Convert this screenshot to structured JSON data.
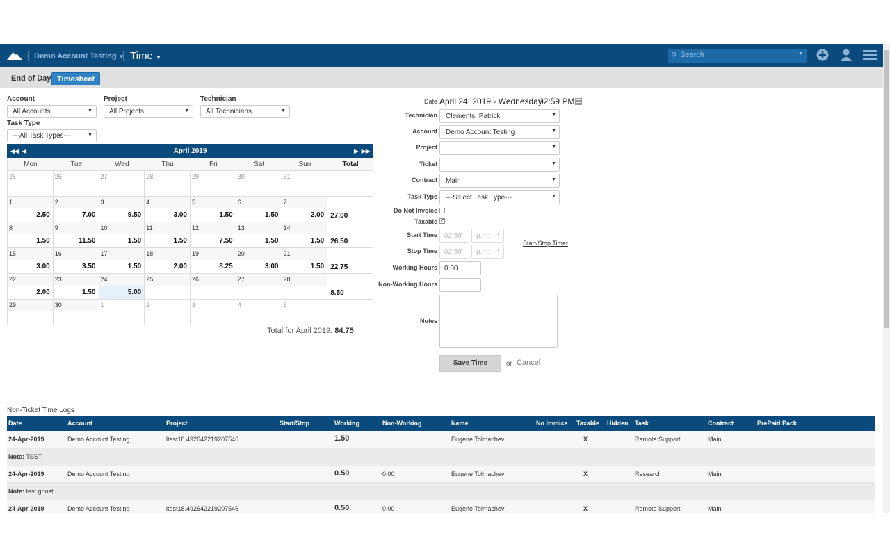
{
  "header": {
    "account": "Demo Account Testing",
    "module": "Time",
    "search_placeholder": "Search"
  },
  "tabs": [
    {
      "label": "End of Day"
    },
    {
      "label": "Timesheet"
    }
  ],
  "filters": {
    "account_label": "Account",
    "account_value": "All Accounts",
    "project_label": "Project",
    "project_value": "All Projects",
    "technician_label": "Technician",
    "technician_value": "All Technicians",
    "tasktype_label": "Task Type",
    "tasktype_value": "---All Task Types---"
  },
  "calendar": {
    "title": "April 2019",
    "weekdays": [
      "Mon",
      "Tue",
      "Wed",
      "Thu",
      "Fri",
      "Sat",
      "Sun",
      "Total"
    ],
    "weeks": [
      {
        "days": [
          [
            "25",
            ""
          ],
          [
            "26",
            ""
          ],
          [
            "27",
            ""
          ],
          [
            "28",
            ""
          ],
          [
            "29",
            ""
          ],
          [
            "30",
            ""
          ],
          [
            "31",
            ""
          ]
        ],
        "total": "",
        "out": [
          0,
          1,
          2,
          3,
          4,
          5,
          6
        ]
      },
      {
        "days": [
          [
            "1",
            "2.50"
          ],
          [
            "2",
            "7.00"
          ],
          [
            "3",
            "9.50"
          ],
          [
            "4",
            "3.00"
          ],
          [
            "5",
            "1.50"
          ],
          [
            "6",
            "1.50"
          ],
          [
            "7",
            "2.00"
          ]
        ],
        "total": "27.00",
        "out": []
      },
      {
        "days": [
          [
            "8",
            "1.50"
          ],
          [
            "9",
            "11.50"
          ],
          [
            "10",
            "1.50"
          ],
          [
            "11",
            "1.50"
          ],
          [
            "12",
            "7.50"
          ],
          [
            "13",
            "1.50"
          ],
          [
            "14",
            "1.50"
          ]
        ],
        "total": "26.50",
        "out": []
      },
      {
        "days": [
          [
            "15",
            "3.00"
          ],
          [
            "16",
            "3.50"
          ],
          [
            "17",
            "1.50"
          ],
          [
            "18",
            "2.00"
          ],
          [
            "19",
            "8.25"
          ],
          [
            "20",
            "3.00"
          ],
          [
            "21",
            "1.50"
          ]
        ],
        "total": "22.75",
        "out": []
      },
      {
        "days": [
          [
            "22",
            "2.00"
          ],
          [
            "23",
            "1.50"
          ],
          [
            "24",
            "5.00"
          ],
          [
            "25",
            ""
          ],
          [
            "26",
            ""
          ],
          [
            "27",
            ""
          ],
          [
            "28",
            ""
          ]
        ],
        "total": "8.50",
        "out": []
      },
      {
        "days": [
          [
            "29",
            ""
          ],
          [
            "30",
            ""
          ],
          [
            "1",
            ""
          ],
          [
            "2",
            ""
          ],
          [
            "3",
            ""
          ],
          [
            "4",
            ""
          ],
          [
            "5",
            ""
          ]
        ],
        "total": "",
        "out": [
          2,
          3,
          4,
          5,
          6
        ]
      }
    ],
    "today": "24",
    "total_label": "Total for April 2019:",
    "total_value": "84.75"
  },
  "form": {
    "date_label": "Date",
    "date_value": "April 24, 2019 - Wednesday",
    "time_value": "02:59 PM",
    "technician_label": "Technician",
    "technician_value": "Clements, Patrick",
    "account_label": "Account",
    "account_value": "Demo Account Testing",
    "project_label": "Project",
    "project_value": "",
    "ticket_label": "Ticket",
    "ticket_value": "",
    "contract_label": "Contract",
    "contract_value": "Main",
    "tasktype_label": "Task Type",
    "tasktype_value": "---Select Task Type---",
    "donotinvoice_label": "Do Not Invoice",
    "donotinvoice_checked": false,
    "taxable_label": "Taxable",
    "taxable_checked": true,
    "start_label": "Start Time",
    "start_value": "02:59",
    "start_ampm": "p.m.",
    "stop_label": "Stop Time",
    "stop_value": "02:59",
    "stop_ampm": "p.m.",
    "timer_link": "Start/Stop Timer",
    "working_label": "Working Hours",
    "working_value": "0.00",
    "nonworking_label": "Non-Working Hours",
    "nonworking_value": "",
    "notes_label": "Notes",
    "notes_value": "",
    "save_label": "Save Time",
    "or_label": "or",
    "cancel_label": "Cancel"
  },
  "logs": {
    "title": "Non-Ticket Time Logs",
    "columns": [
      "Date",
      "Account",
      "Project",
      "Start/Stop",
      "Working",
      "Non-Working",
      "Name",
      "No Invoice",
      "Taxable",
      "Hidden",
      "Task",
      "Contract",
      "PrePaid Pack"
    ],
    "rows": [
      {
        "date": "24-Apr-2019",
        "account": "Demo Account Testing",
        "project": "ltest18.492642219207546",
        "startstop": "",
        "working": "1.50",
        "nonworking": "",
        "name": "Eugene Tolmachev",
        "noinvoice": "",
        "taxable": "X",
        "hidden": "",
        "task": "Remote Support",
        "contract": "Main",
        "prepaid": "",
        "note_label": "Note:",
        "note": "TEST"
      },
      {
        "date": "24-Apr-2019",
        "account": "Demo Account Testing",
        "project": "",
        "startstop": "",
        "working": "0.50",
        "nonworking": "0.00",
        "name": "Eugene Tolmachev",
        "noinvoice": "",
        "taxable": "X",
        "hidden": "",
        "task": "Research",
        "contract": "Main",
        "prepaid": "",
        "note_label": "Note:",
        "note": "test ghost"
      },
      {
        "date": "24-Apr-2019",
        "account": "Demo Account Testing",
        "project": "ltest18.492642219207546",
        "startstop": "",
        "working": "0.50",
        "nonworking": "0.00",
        "name": "Eugene Tolmachev",
        "noinvoice": "",
        "taxable": "X",
        "hidden": "",
        "task": "Remote Support",
        "contract": "Main",
        "prepaid": "",
        "note_label": "",
        "note": ""
      }
    ]
  },
  "colors": {
    "primary": "#0b4a7c",
    "tab_active": "#2f83c5",
    "today": "#e6f0fb"
  }
}
